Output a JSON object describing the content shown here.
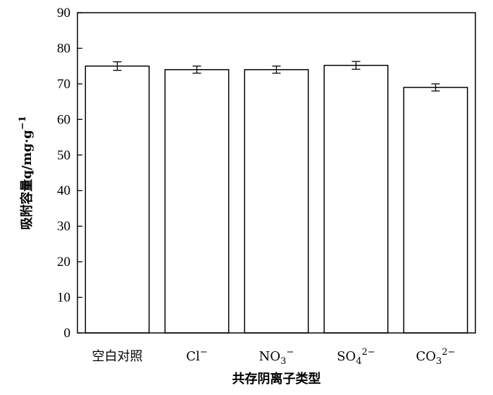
{
  "chart_data": {
    "type": "bar",
    "title": "",
    "xlabel": "共存阴离子类型",
    "ylabel": "吸附容量q/mg·g",
    "ylabel_sup": "−1",
    "categories": [
      {
        "base": "空白对照",
        "sub": "",
        "sup": ""
      },
      {
        "base": "Cl",
        "sub": "",
        "sup": "−"
      },
      {
        "base": "NO",
        "sub": "3",
        "sup": "−"
      },
      {
        "base": "SO",
        "sub": "4",
        "sup": "2−"
      },
      {
        "base": "CO",
        "sub": "3",
        "sup": "2−"
      }
    ],
    "values": [
      75.0,
      74.0,
      74.0,
      75.2,
      69.0
    ],
    "errors": [
      1.2,
      1.0,
      1.0,
      1.1,
      1.0
    ],
    "ylim": [
      0,
      90
    ],
    "yticks": [
      0,
      10,
      20,
      30,
      40,
      50,
      60,
      70,
      80,
      90
    ],
    "grid": false,
    "legend": "none",
    "bar_fill": "#ffffff",
    "bar_stroke": "#000000"
  }
}
